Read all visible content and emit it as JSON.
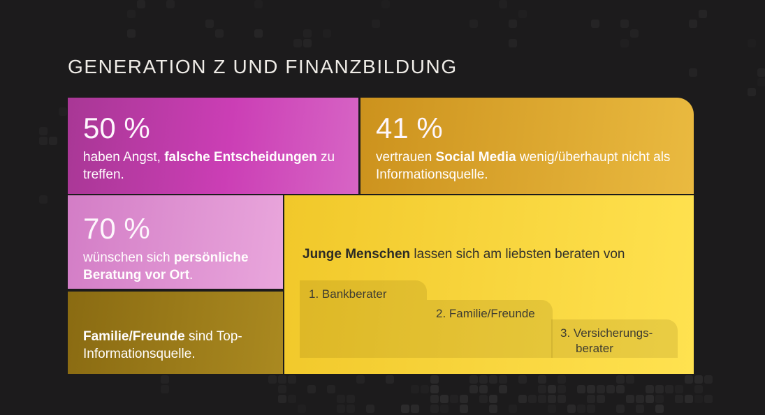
{
  "page": {
    "title": "GENERATION Z UND FINANZBILDUNG"
  },
  "stats": {
    "fear": {
      "value": "50 %",
      "pre": "haben Angst, ",
      "bold": "falsche Entscheidungen",
      "post": " zu treffen."
    },
    "social": {
      "value": "41 %",
      "pre": "vertrauen ",
      "bold": "Social Media",
      "post": " wenig/überhaupt nicht als Informationsquelle."
    },
    "advice": {
      "value": "70 %",
      "pre": "wünschen sich ",
      "bold": "persönliche Beratung vor Ort",
      "post": "."
    },
    "family": {
      "bold": "Familie/Freunde",
      "post": " sind Top-Informationsquelle."
    }
  },
  "ranking": {
    "headline_bold": "Junge Menschen",
    "headline_rest": " lassen sich am liebsten beraten von",
    "items": [
      {
        "text": "1. Bankberater"
      },
      {
        "text": "2. Familie/Freunde"
      },
      {
        "text": "3. Versicherungs-",
        "text2": "berater"
      }
    ]
  },
  "colors": {
    "magenta_a": "#a83795",
    "magenta_b": "#cb3eb5",
    "magenta_c": "#d765c5",
    "orange_a": "#cc921d",
    "orange_b": "#eaba40",
    "pink_a": "#d37dc6",
    "pink_b": "#e9a6dc",
    "gold_a": "#8a6b12",
    "gold_b": "#aa8920",
    "yellow_a": "#f1c82a",
    "yellow_b": "#ffe250",
    "background": "#1c1b1c",
    "title_text": "#efece7",
    "dark_text": "#32312b"
  },
  "chart_data": {
    "type": "table",
    "title": "Generation Z und Finanzbildung",
    "stats": [
      {
        "value_pct": 50,
        "statement": "haben Angst, falsche Entscheidungen zu treffen."
      },
      {
        "value_pct": 41,
        "statement": "vertrauen Social Media wenig/überhaupt nicht als Informationsquelle."
      },
      {
        "value_pct": 70,
        "statement": "wünschen sich persönliche Beratung vor Ort."
      },
      {
        "value_pct": null,
        "statement": "Familie/Freunde sind Top-Informationsquelle."
      }
    ],
    "ranking": {
      "question": "Junge Menschen lassen sich am liebsten beraten von",
      "items": [
        "Bankberater",
        "Familie/Freunde",
        "Versicherungsberater"
      ]
    }
  }
}
